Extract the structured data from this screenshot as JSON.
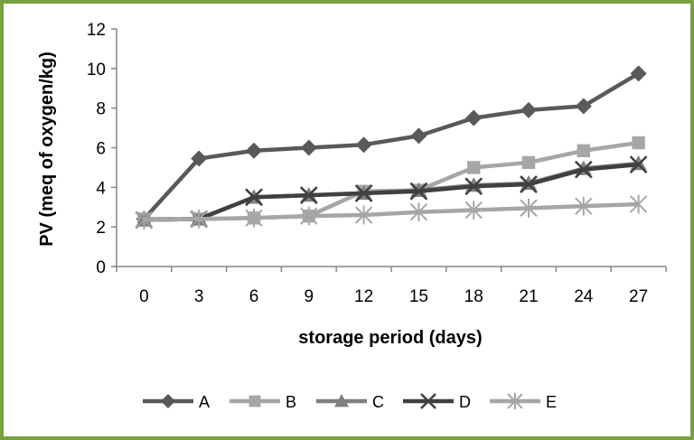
{
  "chart_data": {
    "type": "line",
    "title": "",
    "xlabel": "storage period (days)",
    "ylabel": "PV (meq of oxygen/kg)",
    "x": [
      0,
      3,
      6,
      9,
      12,
      15,
      18,
      21,
      24,
      27
    ],
    "x_tick_labels": [
      "0",
      "3",
      "6",
      "9",
      "12",
      "15",
      "18",
      "21",
      "24",
      "27"
    ],
    "ylim": [
      0,
      12
    ],
    "y_ticks": [
      0,
      2,
      4,
      6,
      8,
      10,
      12
    ],
    "y_tick_labels": [
      "0",
      "2",
      "4",
      "6",
      "8",
      "10",
      "12"
    ],
    "grid": false,
    "legend_position": "bottom",
    "series": [
      {
        "name": "A",
        "marker": "diamond",
        "color": "#595959",
        "values": [
          2.4,
          5.45,
          5.85,
          6.0,
          6.15,
          6.6,
          7.5,
          7.9,
          8.1,
          9.75
        ]
      },
      {
        "name": "B",
        "marker": "square",
        "color": "#a6a6a6",
        "values": [
          2.4,
          2.4,
          2.45,
          2.55,
          3.8,
          3.85,
          5.0,
          5.25,
          5.85,
          6.25
        ]
      },
      {
        "name": "C",
        "marker": "triangle",
        "color": "#7f7f7f",
        "values": [
          2.35,
          2.4,
          3.5,
          3.6,
          3.7,
          3.85,
          4.1,
          4.2,
          4.95,
          5.2
        ]
      },
      {
        "name": "D",
        "marker": "x",
        "color": "#404040",
        "values": [
          2.35,
          2.4,
          3.5,
          3.6,
          3.7,
          3.8,
          4.05,
          4.15,
          4.9,
          5.15
        ]
      },
      {
        "name": "E",
        "marker": "star",
        "color": "#a6a6a6",
        "values": [
          2.35,
          2.4,
          2.45,
          2.55,
          2.6,
          2.75,
          2.85,
          2.95,
          3.05,
          3.15
        ]
      }
    ]
  },
  "colors": {
    "frame_border": "#77a13f",
    "axis": "#868686"
  }
}
